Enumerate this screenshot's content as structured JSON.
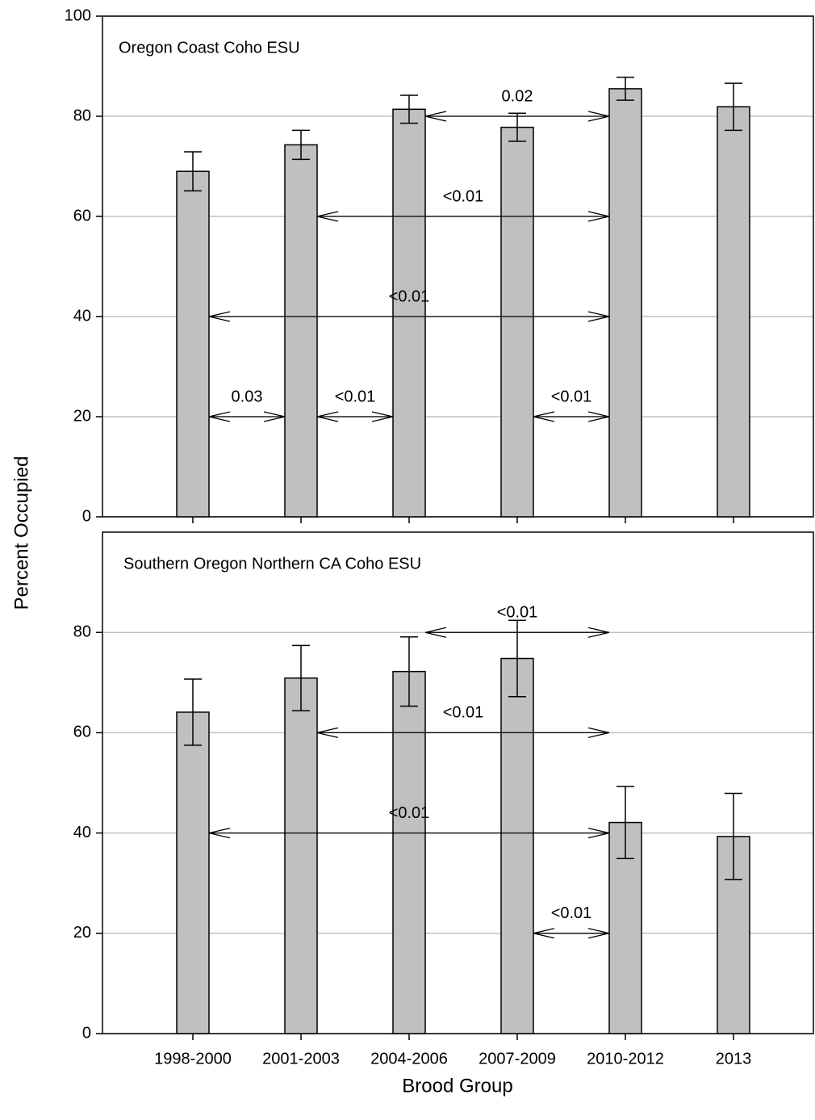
{
  "ylabel": "Percent Occupied",
  "xlabel": "Brood Group",
  "categories": [
    "1998-2000",
    "2001-2003",
    "2004-2006",
    "2007-2009",
    "2010-2012",
    "2013"
  ],
  "chart_data": [
    {
      "type": "bar",
      "title": "Oregon Coast Coho ESU",
      "color": "#c0c0c0",
      "values": [
        69,
        74.3,
        81.4,
        77.8,
        85.5,
        81.9
      ],
      "errors": [
        3.9,
        2.9,
        2.8,
        2.8,
        2.3,
        4.7
      ],
      "ylim": [
        0,
        100
      ],
      "yticks": [
        0,
        20,
        40,
        60,
        80,
        100
      ],
      "grid": true,
      "annotations": [
        {
          "label": "0.02",
          "y": 80,
          "between": [
            "2004-2006",
            "2010-2012"
          ]
        },
        {
          "label": "<0.01",
          "y": 60,
          "between": [
            "2001-2003",
            "2010-2012"
          ]
        },
        {
          "label": "<0.01",
          "y": 40,
          "between": [
            "1998-2000",
            "2010-2012"
          ]
        },
        {
          "label": "0.03",
          "y": 20,
          "between": [
            "1998-2000",
            "2001-2003"
          ]
        },
        {
          "label": "<0.01",
          "y": 20,
          "between": [
            "2001-2003",
            "2004-2006"
          ]
        },
        {
          "label": "<0.01",
          "y": 20,
          "between": [
            "2007-2009",
            "2010-2012"
          ]
        }
      ]
    },
    {
      "type": "bar",
      "title": "Southern Oregon Northern CA Coho ESU",
      "color": "#c0c0c0",
      "values": [
        64.1,
        70.9,
        72.2,
        74.8,
        42.1,
        39.3
      ],
      "errors": [
        6.6,
        6.5,
        6.9,
        7.6,
        7.2,
        8.6
      ],
      "ylim": [
        0,
        100
      ],
      "yticks": [
        0,
        20,
        40,
        60,
        80
      ],
      "grid": true,
      "annotations": [
        {
          "label": "<0.01",
          "y": 80,
          "between": [
            "2004-2006",
            "2010-2012"
          ]
        },
        {
          "label": "<0.01",
          "y": 60,
          "between": [
            "2001-2003",
            "2010-2012"
          ]
        },
        {
          "label": "<0.01",
          "y": 40,
          "between": [
            "1998-2000",
            "2010-2012"
          ]
        },
        {
          "label": "<0.01",
          "y": 20,
          "between": [
            "2007-2009",
            "2010-2012"
          ]
        }
      ]
    }
  ]
}
